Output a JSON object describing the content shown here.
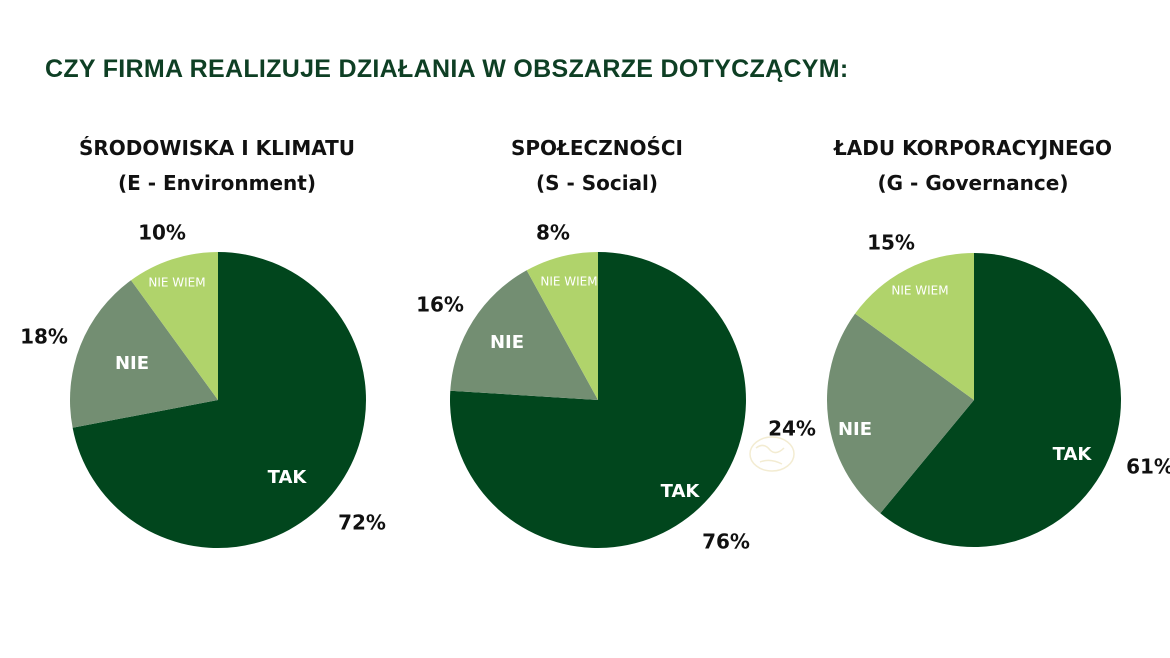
{
  "headline": "CZY FIRMA REALIZUJE DZIAŁANIA W OBSZARZE DOTYCZĄCYM:",
  "colors": {
    "tak": "#01461d",
    "nie": "#738e72",
    "nie_wiem": "#b0d36b",
    "headline": "#0e3f24"
  },
  "chart_data": [
    {
      "type": "pie",
      "title": "ŚRODOWISKA I KLIMATU",
      "subtitle": "(E - Environment)",
      "categories": [
        "TAK",
        "NIE",
        "NIE WIEM"
      ],
      "values": [
        72,
        18,
        10
      ],
      "value_labels": [
        "72%",
        "18%",
        "10%"
      ]
    },
    {
      "type": "pie",
      "title": "SPOŁECZNOŚCI",
      "subtitle": "(S - Social)",
      "categories": [
        "TAK",
        "NIE",
        "NIE WIEM"
      ],
      "values": [
        76,
        16,
        8
      ],
      "value_labels": [
        "76%",
        "16%",
        "8%"
      ],
      "extra_label": "24%"
    },
    {
      "type": "pie",
      "title": "ŁADU KORPORACYJNEGO",
      "subtitle": "(G - Governance)",
      "categories": [
        "TAK",
        "NIE",
        "NIE WIEM"
      ],
      "values": [
        61,
        24,
        15
      ],
      "value_labels": [
        "61%",
        "",
        "15%"
      ]
    }
  ]
}
